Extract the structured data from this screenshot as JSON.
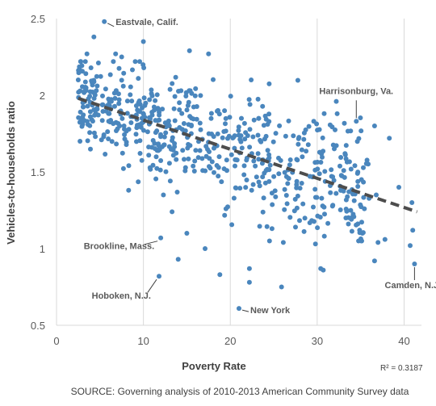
{
  "chart_data": {
    "type": "scatter",
    "xlabel": "Poverty Rate",
    "ylabel": "Vehicles-to-households ratio",
    "xlim": [
      0,
      42
    ],
    "ylim": [
      0.5,
      2.5
    ],
    "x_ticks": [
      0,
      10,
      20,
      30,
      40
    ],
    "y_ticks": [
      0.5,
      1,
      1.5,
      2,
      2.5
    ],
    "grid": "vertical",
    "colors": {
      "points": "#4a86bd",
      "trend": "#4d4d4d"
    },
    "r_squared_label": "R² = 0.3187",
    "trendline": {
      "style": "dashed",
      "x": [
        2.5,
        41.5
      ],
      "y": [
        1.98,
        1.24
      ]
    },
    "annotations": [
      {
        "label": "Eastvale, Calif.",
        "x": 5.5,
        "y": 2.48
      },
      {
        "label": "Harrisonburg, Va.",
        "x": 34.5,
        "y": 1.83
      },
      {
        "label": "Brookline, Mass.",
        "x": 12,
        "y": 1.07
      },
      {
        "label": "Hoboken, N.J.",
        "x": 11.8,
        "y": 0.82
      },
      {
        "label": "Camden, N.J.",
        "x": 41.2,
        "y": 0.9
      },
      {
        "label": "New York",
        "x": 21,
        "y": 0.61
      }
    ],
    "highlight_points": [
      {
        "x": 5.5,
        "y": 2.48
      },
      {
        "x": 34.5,
        "y": 1.83
      },
      {
        "x": 12,
        "y": 1.07
      },
      {
        "x": 11.8,
        "y": 0.82
      },
      {
        "x": 41.2,
        "y": 0.9
      },
      {
        "x": 21,
        "y": 0.61
      },
      {
        "x": 2.5,
        "y": 2.1
      },
      {
        "x": 3.5,
        "y": 2.27
      },
      {
        "x": 4.3,
        "y": 2.38
      },
      {
        "x": 6.8,
        "y": 2.27
      },
      {
        "x": 7.5,
        "y": 2.25
      },
      {
        "x": 10,
        "y": 2.35
      },
      {
        "x": 15.3,
        "y": 2.29
      },
      {
        "x": 17.5,
        "y": 2.27
      },
      {
        "x": 22.4,
        "y": 2.1
      },
      {
        "x": 2.7,
        "y": 1.7
      },
      {
        "x": 8.3,
        "y": 1.38
      },
      {
        "x": 12.3,
        "y": 1.35
      },
      {
        "x": 13.3,
        "y": 1.24
      },
      {
        "x": 14,
        "y": 0.93
      },
      {
        "x": 15,
        "y": 1.1
      },
      {
        "x": 17.1,
        "y": 1.0
      },
      {
        "x": 18.8,
        "y": 0.83
      },
      {
        "x": 19.5,
        "y": 1.26
      },
      {
        "x": 22.2,
        "y": 0.87
      },
      {
        "x": 22.2,
        "y": 0.78
      },
      {
        "x": 25.9,
        "y": 0.75
      },
      {
        "x": 24.8,
        "y": 1.13
      },
      {
        "x": 26.1,
        "y": 1.04
      },
      {
        "x": 27.5,
        "y": 1.14
      },
      {
        "x": 29.8,
        "y": 1.03
      },
      {
        "x": 30.4,
        "y": 0.87
      },
      {
        "x": 30.7,
        "y": 0.86
      },
      {
        "x": 33.3,
        "y": 1.2
      },
      {
        "x": 35.2,
        "y": 1.1
      },
      {
        "x": 36.6,
        "y": 0.92
      },
      {
        "x": 37,
        "y": 1.04
      },
      {
        "x": 37.8,
        "y": 1.06
      },
      {
        "x": 40.7,
        "y": 1.02
      },
      {
        "x": 41,
        "y": 1.12
      },
      {
        "x": 40.9,
        "y": 1.3
      },
      {
        "x": 39.4,
        "y": 1.4
      },
      {
        "x": 36.6,
        "y": 1.8
      },
      {
        "x": 38.3,
        "y": 1.72
      },
      {
        "x": 30.8,
        "y": 1.88
      },
      {
        "x": 32.2,
        "y": 1.96
      },
      {
        "x": 29.6,
        "y": 1.83
      },
      {
        "x": 33.2,
        "y": 1.62
      },
      {
        "x": 35.1,
        "y": 1.45
      },
      {
        "x": 36.8,
        "y": 1.35
      }
    ],
    "cloud": {
      "count": 620,
      "x_range": [
        2.5,
        36
      ],
      "trend_intercept": 2.03,
      "trend_slope": -0.019,
      "spread": 0.17
    }
  },
  "source_text": "SOURCE: Governing analysis of 2010-2013 American Community Survey data"
}
